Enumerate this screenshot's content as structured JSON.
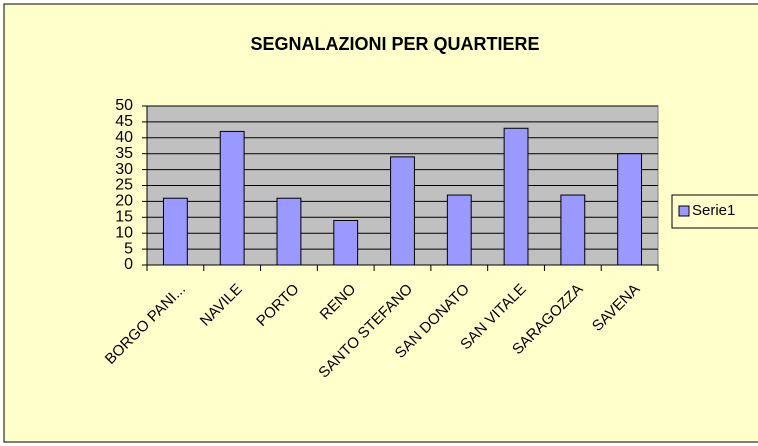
{
  "chart_data": {
    "type": "bar",
    "title": "SEGNALAZIONI PER QUARTIERE",
    "categories": [
      "BORGO PANI...",
      "NAVILE",
      "PORTO",
      "RENO",
      "SANTO STEFANO",
      "SAN DONATO",
      "SAN VITALE",
      "SARAGOZZA",
      "SAVENA"
    ],
    "series": [
      {
        "name": "Serie1",
        "color": "#9999ff",
        "values": [
          21,
          42,
          21,
          14,
          34,
          22,
          43,
          22,
          35
        ]
      }
    ],
    "ylim": [
      0,
      50
    ],
    "yticks": [
      0,
      5,
      10,
      15,
      20,
      25,
      30,
      35,
      40,
      45,
      50
    ],
    "grid": true,
    "legend": "right"
  }
}
